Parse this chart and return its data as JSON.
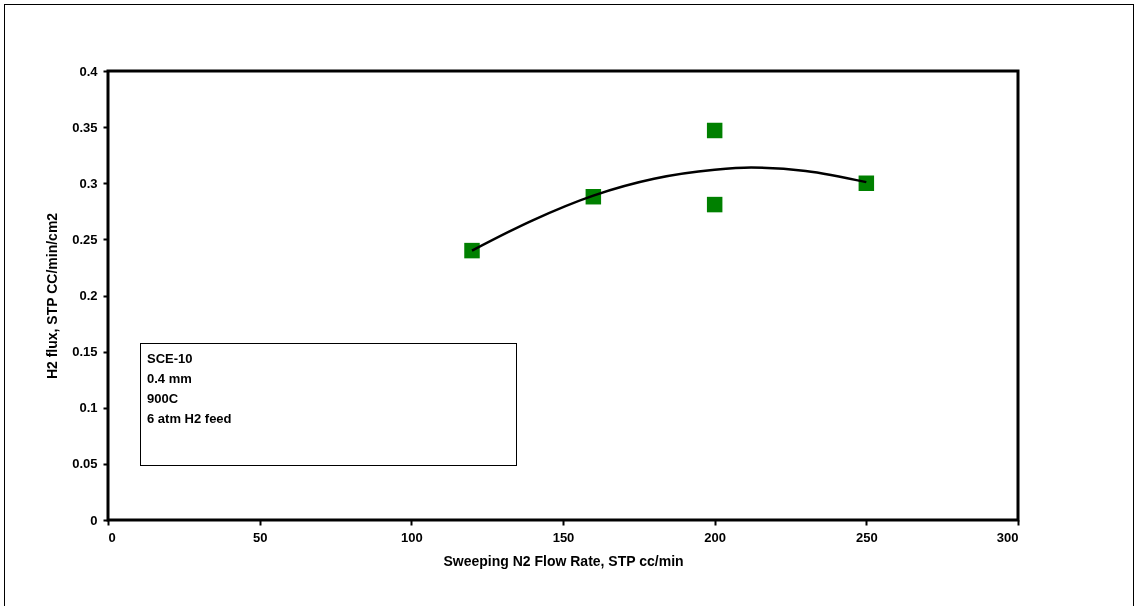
{
  "chart_data": {
    "type": "scatter",
    "xlabel": "Sweeping N2 Flow Rate, STP  cc/min",
    "ylabel": "H2 flux, STP CC/min/cm2",
    "xlim": [
      0,
      300
    ],
    "xticks": [
      0,
      50,
      100,
      150,
      200,
      250,
      300
    ],
    "ylim": [
      0,
      0.4
    ],
    "yticks": [
      0,
      0.05,
      0.1,
      0.15,
      0.2,
      0.25,
      0.3,
      0.35,
      0.4
    ],
    "grid": false,
    "marker": "square",
    "series": [
      {
        "type": "scatter",
        "color": "#008000",
        "x": [
          120,
          160,
          200,
          200,
          250
        ],
        "values": [
          0.24,
          0.288,
          0.347,
          0.281,
          0.3
        ]
      },
      {
        "type": "line",
        "color": "#000000",
        "line_style": "solid",
        "marker": "none",
        "x": [
          120,
          140,
          160,
          180,
          200,
          212,
          230,
          250
        ],
        "values": [
          0.24,
          0.267,
          0.289,
          0.304,
          0.312,
          0.314,
          0.311,
          0.301
        ]
      }
    ],
    "annotations": [
      "SCE-10",
      "0.4 mm",
      "900C",
      "6 atm H2 feed"
    ]
  }
}
